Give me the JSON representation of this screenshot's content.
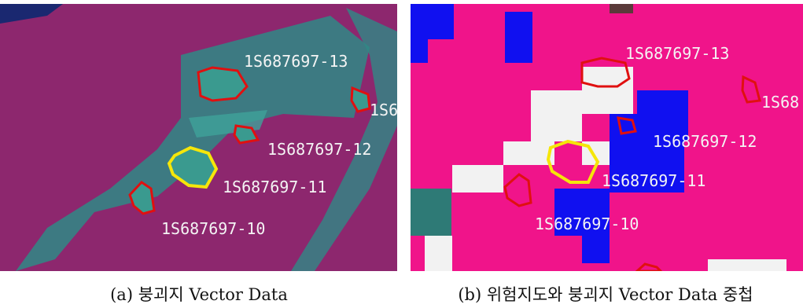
{
  "panel_a": {
    "labels": [
      "1S687697-13",
      "1S6",
      "1S687697-12",
      "1S687697-11",
      "1S687697-10"
    ],
    "caption": "(a) 붕괴지 Vector Data"
  },
  "panel_b": {
    "labels": [
      "1S687697-13",
      "1S68",
      "1S687697-12",
      "1S687697-11",
      "1S687697-10"
    ],
    "caption": "(b) 위험지도와 붕괴지 Vector Data 중첩"
  }
}
